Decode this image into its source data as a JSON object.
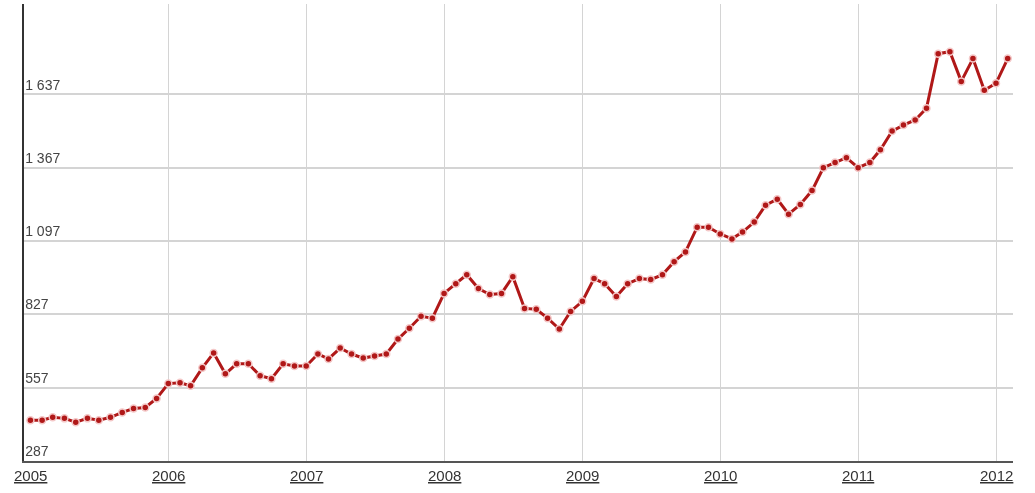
{
  "chart_data": {
    "type": "line",
    "x": [
      "2005-01",
      "2005-02",
      "2005-03",
      "2005-04",
      "2005-05",
      "2005-06",
      "2005-07",
      "2005-08",
      "2005-09",
      "2005-10",
      "2005-11",
      "2005-12",
      "2006-01",
      "2006-02",
      "2006-03",
      "2006-04",
      "2006-05",
      "2006-06",
      "2006-07",
      "2006-08",
      "2006-09",
      "2006-10",
      "2006-11",
      "2006-12",
      "2007-01",
      "2007-02",
      "2007-03",
      "2007-04",
      "2007-05",
      "2007-06",
      "2007-07",
      "2007-08",
      "2007-09",
      "2007-10",
      "2007-11",
      "2007-12",
      "2008-01",
      "2008-02",
      "2008-03",
      "2008-04",
      "2008-05",
      "2008-06",
      "2008-07",
      "2008-08",
      "2008-09",
      "2008-10",
      "2008-11",
      "2008-12",
      "2009-01",
      "2009-02",
      "2009-03",
      "2009-04",
      "2009-05",
      "2009-06",
      "2009-07",
      "2009-08",
      "2009-09",
      "2009-10",
      "2009-11",
      "2009-12",
      "2010-01",
      "2010-02",
      "2010-03",
      "2010-04",
      "2010-05",
      "2010-06",
      "2010-07",
      "2010-08",
      "2010-09",
      "2010-10",
      "2010-11",
      "2010-12",
      "2011-01",
      "2011-02",
      "2011-03",
      "2011-04",
      "2011-05",
      "2011-06",
      "2011-07",
      "2011-08",
      "2011-09",
      "2011-10",
      "2011-11",
      "2011-12",
      "2012-01",
      "2012-02"
    ],
    "series": [
      {
        "color": "#b01818",
        "values": [
          437,
          437,
          448,
          444,
          430,
          444,
          437,
          448,
          466,
          480,
          484,
          517,
          572,
          575,
          564,
          630,
          685,
          608,
          645,
          645,
          601,
          590,
          645,
          637,
          637,
          681,
          663,
          703,
          681,
          666,
          674,
          681,
          736,
          776,
          820,
          813,
          904,
          940,
          973,
          922,
          900,
          904,
          966,
          849,
          846,
          813,
          773,
          838,
          875,
          959,
          940,
          893,
          940,
          959,
          955,
          973,
          1021,
          1057,
          1148,
          1148,
          1123,
          1105,
          1130,
          1167,
          1229,
          1251,
          1196,
          1232,
          1283,
          1367,
          1386,
          1404,
          1367,
          1386,
          1433,
          1502,
          1524,
          1543,
          1586,
          1787,
          1794,
          1685,
          1769,
          1652,
          1678,
          1769
        ]
      }
    ],
    "xlim": [
      "2004-12-15",
      "2012-02-15"
    ],
    "xticks": [
      "2005",
      "2006",
      "2007",
      "2008",
      "2009",
      "2010",
      "2011",
      "2012"
    ],
    "ylim": [
      287,
      1970
    ],
    "yticks": [
      {
        "value": 287,
        "label": "287"
      },
      {
        "value": 557,
        "label": "557"
      },
      {
        "value": 827,
        "label": "827"
      },
      {
        "value": 1097,
        "label": "1 097"
      },
      {
        "value": 1367,
        "label": "1 367"
      },
      {
        "value": 1637,
        "label": "1 637"
      }
    ],
    "grid": true,
    "marker": "circle",
    "line_style": "solid"
  }
}
